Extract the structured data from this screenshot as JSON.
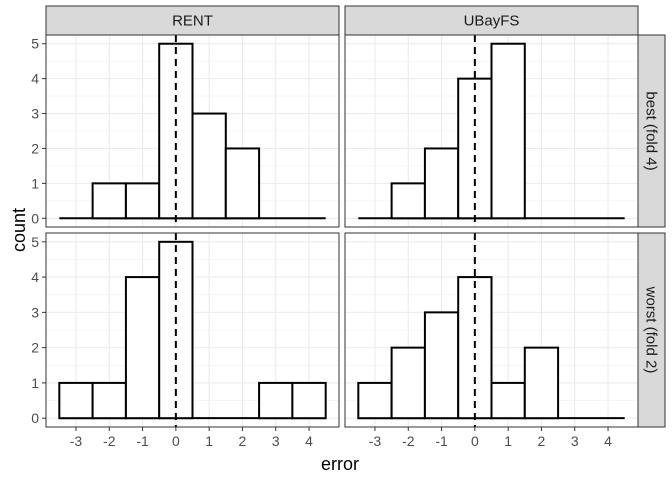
{
  "chart_data": {
    "type": "bar",
    "xlabel": "error",
    "ylabel": "count",
    "xlim": [
      -3.5,
      4.5
    ],
    "ylim": [
      0,
      5
    ],
    "x_ticks": [
      "-3",
      "-2",
      "-1",
      "0",
      "1",
      "2",
      "3",
      "4"
    ],
    "y_ticks": [
      "0",
      "1",
      "2",
      "3",
      "4",
      "5"
    ],
    "bin_centers": [
      -3,
      -2,
      -1,
      0,
      1,
      2,
      3,
      4
    ],
    "reference_line": 0,
    "grid": true,
    "columns": [
      "RENT",
      "UBayFS"
    ],
    "rows": [
      "best (fold 4)",
      "worst (fold 2)"
    ],
    "panels": [
      {
        "column": "RENT",
        "row": "best (fold 4)",
        "values": [
          0,
          1,
          1,
          5,
          3,
          2,
          0,
          0
        ]
      },
      {
        "column": "UBayFS",
        "row": "best (fold 4)",
        "values": [
          0,
          1,
          2,
          4,
          5,
          0,
          0,
          0
        ]
      },
      {
        "column": "RENT",
        "row": "worst (fold 2)",
        "values": [
          1,
          1,
          4,
          5,
          0,
          0,
          1,
          1
        ]
      },
      {
        "column": "UBayFS",
        "row": "worst (fold 2)",
        "values": [
          1,
          2,
          3,
          4,
          1,
          2,
          0,
          0
        ]
      }
    ]
  }
}
